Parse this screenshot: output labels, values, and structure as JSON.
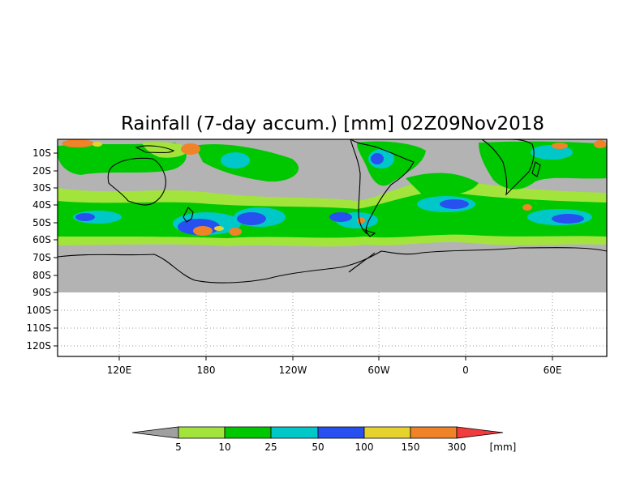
{
  "title": "Rainfall (7-day accum.) [mm] 02Z09Nov2018",
  "map": {
    "lat_labels": [
      "10S",
      "20S",
      "30S",
      "40S",
      "50S",
      "60S",
      "70S",
      "80S",
      "90S",
      "100S",
      "110S",
      "120S"
    ],
    "lon_labels": [
      "120E",
      "180",
      "120W",
      "60W",
      "0",
      "60E"
    ],
    "colors": {
      "no_data": "#b3b3b3",
      "background": "#ffffff",
      "gridline": "#999999",
      "coastline": "#000000"
    }
  },
  "colorbar": {
    "thresholds": [
      "5",
      "10",
      "25",
      "50",
      "100",
      "150",
      "300"
    ],
    "unit": "[mm]",
    "colors": [
      "#a0a0a0",
      "#a2e43c",
      "#00c800",
      "#00c8c8",
      "#2850f0",
      "#e6d22d",
      "#f08228",
      "#f03c3c"
    ]
  }
}
